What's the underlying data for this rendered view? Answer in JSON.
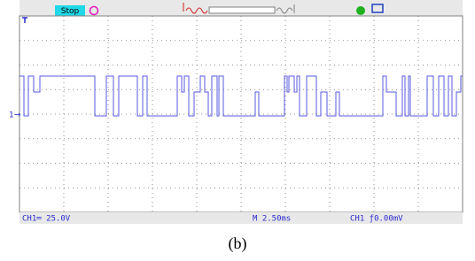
{
  "status": {
    "run_state": "Stop"
  },
  "readout": {
    "ch1_scale": "CH1═ 25.0V",
    "timebase": "M 2.50ms",
    "trigger": "CH1 ƒ0.00mV"
  },
  "caption": "(b)"
}
